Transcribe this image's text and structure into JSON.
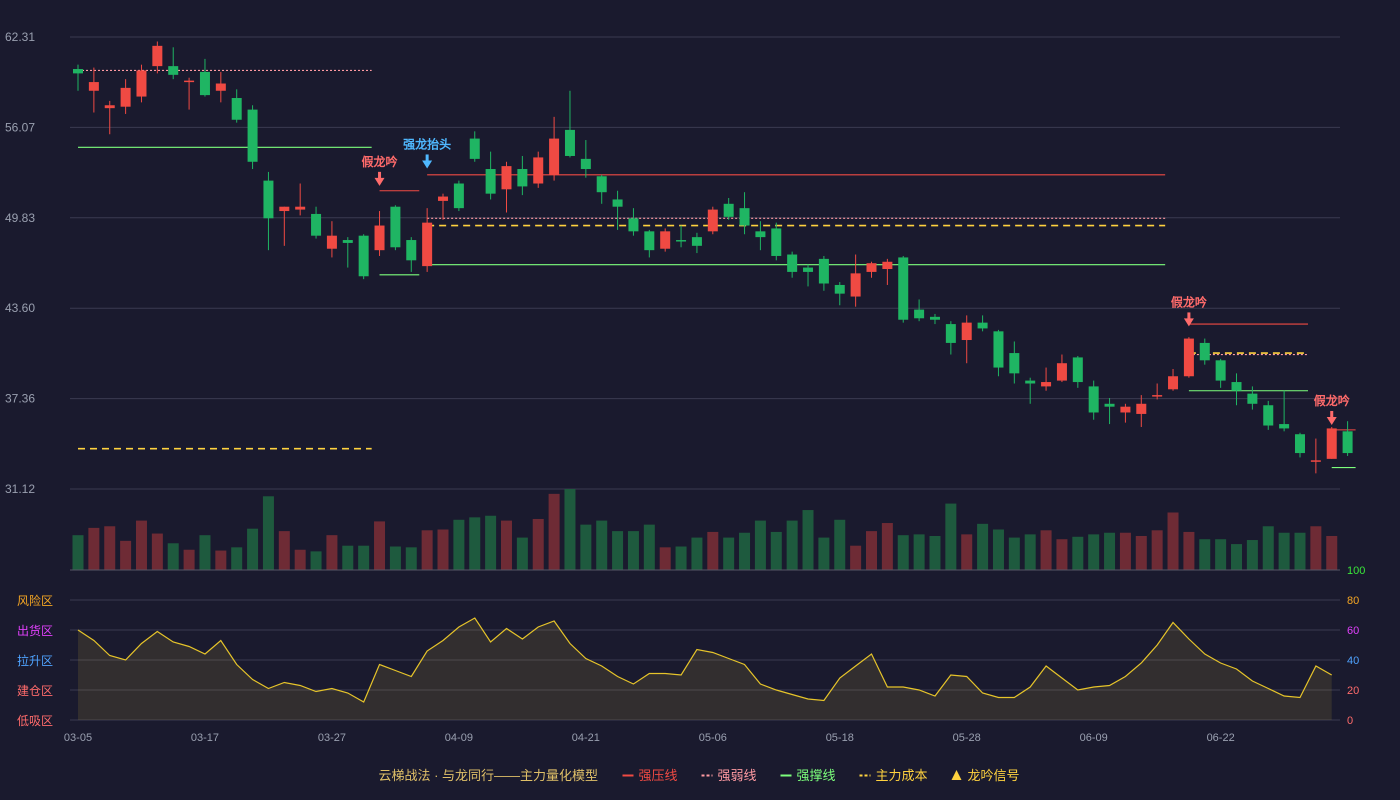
{
  "chart_data": {
    "type": "candlestick",
    "x_tick_labels": [
      "03-05",
      "03-17",
      "03-27",
      "04-09",
      "04-21",
      "05-06",
      "05-18",
      "05-28",
      "06-09",
      "06-22"
    ],
    "x_tick_index": [
      0,
      8,
      16,
      24,
      32,
      40,
      48,
      56,
      64,
      72
    ],
    "y_ticks": [
      "62.31",
      "56.07",
      "49.83",
      "43.60",
      "37.36",
      "31.12"
    ],
    "ylim": [
      31.12,
      62.31
    ],
    "candles": [
      [
        60.1,
        59.8,
        60.4,
        58.6
      ],
      [
        58.6,
        59.2,
        60.2,
        57.1
      ],
      [
        57.4,
        57.6,
        57.9,
        55.6
      ],
      [
        57.5,
        58.8,
        59.4,
        57.0
      ],
      [
        58.2,
        60.0,
        60.4,
        57.8
      ],
      [
        60.3,
        61.7,
        62.0,
        59.8
      ],
      [
        60.3,
        59.7,
        61.6,
        59.4
      ],
      [
        59.2,
        59.3,
        59.5,
        57.3
      ],
      [
        59.9,
        58.3,
        60.8,
        58.2
      ],
      [
        58.6,
        59.1,
        59.9,
        57.8
      ],
      [
        58.1,
        56.6,
        58.7,
        56.4
      ],
      [
        57.3,
        53.7,
        57.6,
        53.2
      ],
      [
        52.4,
        49.8,
        53.0,
        47.6
      ],
      [
        50.3,
        50.6,
        50.6,
        47.9
      ],
      [
        50.4,
        50.6,
        52.2,
        50.0
      ],
      [
        50.1,
        48.6,
        50.6,
        48.4
      ],
      [
        47.7,
        48.6,
        49.6,
        47.1
      ],
      [
        48.3,
        48.1,
        48.5,
        46.4
      ],
      [
        48.6,
        45.8,
        48.7,
        45.6
      ],
      [
        47.6,
        49.3,
        50.3,
        47.2
      ],
      [
        50.6,
        47.8,
        50.7,
        47.6
      ],
      [
        48.3,
        46.9,
        48.5,
        46.1
      ],
      [
        46.5,
        49.5,
        50.5,
        46.1
      ],
      [
        51.0,
        51.3,
        51.5,
        49.7
      ],
      [
        52.2,
        50.5,
        52.4,
        50.3
      ],
      [
        55.3,
        53.9,
        55.8,
        53.7
      ],
      [
        53.2,
        51.5,
        54.4,
        51.1
      ],
      [
        51.8,
        53.4,
        53.7,
        50.2
      ],
      [
        53.2,
        52.0,
        54.1,
        51.4
      ],
      [
        52.2,
        54.0,
        54.4,
        51.9
      ],
      [
        52.8,
        55.3,
        56.8,
        52.4
      ],
      [
        55.9,
        54.1,
        58.6,
        54.0
      ],
      [
        53.9,
        53.2,
        55.2,
        52.6
      ],
      [
        52.7,
        51.6,
        52.8,
        50.8
      ],
      [
        51.1,
        50.6,
        51.7,
        49.0
      ],
      [
        49.8,
        48.9,
        50.5,
        48.6
      ],
      [
        48.9,
        47.6,
        49.0,
        47.1
      ],
      [
        47.7,
        48.9,
        49.1,
        47.5
      ],
      [
        48.3,
        48.2,
        49.3,
        47.8
      ],
      [
        48.5,
        47.9,
        48.8,
        47.4
      ],
      [
        48.9,
        50.4,
        50.6,
        48.7
      ],
      [
        50.8,
        49.9,
        51.2,
        49.7
      ],
      [
        50.5,
        49.3,
        51.6,
        48.7
      ],
      [
        48.9,
        48.5,
        49.6,
        47.6
      ],
      [
        49.1,
        47.2,
        49.5,
        46.9
      ],
      [
        47.3,
        46.1,
        47.5,
        45.7
      ],
      [
        46.4,
        46.1,
        46.6,
        45.1
      ],
      [
        47.0,
        45.3,
        47.2,
        44.8
      ],
      [
        45.2,
        44.6,
        45.4,
        43.8
      ],
      [
        44.4,
        46.0,
        47.3,
        43.7
      ],
      [
        46.1,
        46.7,
        46.8,
        45.7
      ],
      [
        46.3,
        46.8,
        47.0,
        45.2
      ],
      [
        47.1,
        42.8,
        47.2,
        42.6
      ],
      [
        43.5,
        42.9,
        44.2,
        42.7
      ],
      [
        43.0,
        42.8,
        43.2,
        42.5
      ],
      [
        42.5,
        41.2,
        42.7,
        40.4
      ],
      [
        41.4,
        42.6,
        43.1,
        39.8
      ],
      [
        42.6,
        42.2,
        43.1,
        42.0
      ],
      [
        42.0,
        39.5,
        42.1,
        38.9
      ],
      [
        40.5,
        39.1,
        41.3,
        38.4
      ],
      [
        38.6,
        38.4,
        38.8,
        37.0
      ],
      [
        38.2,
        38.5,
        39.5,
        37.9
      ],
      [
        38.6,
        39.8,
        40.4,
        38.5
      ],
      [
        40.2,
        38.5,
        40.3,
        38.1
      ],
      [
        38.2,
        36.4,
        38.6,
        35.9
      ],
      [
        37.0,
        36.8,
        37.4,
        35.6
      ],
      [
        36.4,
        36.8,
        37.0,
        35.7
      ],
      [
        36.3,
        37.0,
        37.6,
        35.4
      ],
      [
        37.6,
        37.6,
        38.4,
        37.3
      ],
      [
        38.0,
        38.9,
        39.4,
        37.9
      ],
      [
        38.9,
        41.5,
        41.6,
        38.8
      ],
      [
        41.2,
        40.0,
        41.5,
        39.7
      ],
      [
        40.0,
        38.6,
        40.1,
        38.1
      ],
      [
        38.5,
        37.9,
        39.1,
        36.9
      ],
      [
        37.7,
        37.0,
        38.2,
        36.6
      ],
      [
        36.9,
        35.5,
        37.2,
        35.2
      ],
      [
        35.6,
        35.3,
        37.9,
        35.1
      ],
      [
        34.9,
        33.6,
        35.0,
        33.3
      ],
      [
        33.1,
        33.1,
        34.6,
        32.2
      ],
      [
        33.2,
        35.3,
        35.4,
        33.2
      ],
      [
        35.1,
        33.6,
        35.8,
        33.4
      ]
    ],
    "volume": [
      43,
      52,
      54,
      36,
      61,
      45,
      33,
      25,
      43,
      24,
      28,
      51,
      91,
      48,
      25,
      23,
      43,
      30,
      30,
      60,
      29,
      28,
      49,
      50,
      62,
      65,
      67,
      61,
      40,
      63,
      94,
      100,
      56,
      61,
      48,
      48,
      56,
      28,
      29,
      40,
      47,
      40,
      46,
      61,
      47,
      61,
      74,
      40,
      62,
      30,
      48,
      58,
      43,
      44,
      42,
      82,
      44,
      57,
      50,
      40,
      44,
      49,
      38,
      41,
      44,
      46,
      46,
      42,
      49,
      71,
      47,
      38,
      38,
      32,
      37,
      54,
      46,
      46,
      54,
      42
    ],
    "volume_colors": "red=up, green=down",
    "indicator": [
      60,
      53,
      43,
      40,
      51,
      59,
      52,
      49,
      44,
      53,
      37,
      27,
      21,
      25,
      23,
      19,
      21,
      18,
      12,
      37,
      33,
      29,
      46,
      53,
      62,
      68,
      52,
      61,
      54,
      62,
      66,
      51,
      41,
      36,
      29,
      24,
      31,
      31,
      30,
      47,
      45,
      41,
      37,
      24,
      20,
      17,
      14,
      13,
      28,
      36,
      44,
      22,
      22,
      20,
      16,
      30,
      29,
      18,
      15,
      15,
      22,
      36,
      28,
      20,
      22,
      23,
      29,
      38,
      50,
      65,
      54,
      44,
      38,
      34,
      26,
      21,
      16,
      15,
      36,
      30
    ],
    "indicator_ylim": [
      0,
      100
    ],
    "indicator_ticks": [
      "100",
      "80",
      "60",
      "40",
      "20",
      "0"
    ],
    "indicator_zones": [
      "风险区",
      "出货区",
      "拉升区",
      "建仓区",
      "低吸区"
    ],
    "annotations": [
      {
        "label": "假龙吟",
        "index": 19,
        "price": 51.9
      },
      {
        "label": "强龙抬头",
        "index": 22,
        "price": 53.1
      },
      {
        "label": "假龙吟",
        "index": 70,
        "price": 42.2
      },
      {
        "label": "假龙吟",
        "index": 79,
        "price": 35.4
      }
    ],
    "segments": [
      {
        "type": "weak",
        "i0": 0,
        "i1": 18,
        "y": 60.0
      },
      {
        "type": "support",
        "i0": 0,
        "i1": 18,
        "y": 54.7
      },
      {
        "type": "cost",
        "i0": 0,
        "i1": 18,
        "y": 33.9
      },
      {
        "type": "resist",
        "i0": 19,
        "i1": 21,
        "y": 51.7
      },
      {
        "type": "support",
        "i0": 19,
        "i1": 21,
        "y": 45.9
      },
      {
        "type": "resist",
        "i0": 22,
        "i1": 68,
        "y": 52.8
      },
      {
        "type": "weak",
        "i0": 22,
        "i1": 68,
        "y": 49.8
      },
      {
        "type": "cost",
        "i0": 22,
        "i1": 68,
        "y": 49.3
      },
      {
        "type": "support",
        "i0": 22,
        "i1": 68,
        "y": 46.6
      },
      {
        "type": "resist",
        "i0": 70,
        "i1": 77,
        "y": 42.5
      },
      {
        "type": "weak",
        "i0": 70,
        "i1": 77,
        "y": 40.4
      },
      {
        "type": "cost",
        "i0": 70,
        "i1": 77,
        "y": 40.5
      },
      {
        "type": "support",
        "i0": 70,
        "i1": 77,
        "y": 37.9
      },
      {
        "type": "resist",
        "i0": 79,
        "i1": 80,
        "y": 35.2
      },
      {
        "type": "support",
        "i0": 79,
        "i1": 80,
        "y": 32.6
      }
    ],
    "legend": [
      {
        "label": "云梯战法 · 与龙同行——主力量化模型",
        "color": "#e0c068",
        "type": "title"
      },
      {
        "label": "强压线",
        "color": "#f04a43",
        "type": "solid"
      },
      {
        "label": "强弱线",
        "color": "#ff9aa2",
        "type": "dashed"
      },
      {
        "label": "强撑线",
        "color": "#7cff7c",
        "type": "solid"
      },
      {
        "label": "主力成本",
        "color": "#ffd23f",
        "type": "dashed"
      },
      {
        "label": "龙吟信号",
        "color": "#ffd23f",
        "type": "triangle"
      }
    ],
    "legend_placement": "bottom"
  },
  "colors": {
    "up": "#f04a43",
    "down": "#1fb563",
    "indicator": "#e6c42a",
    "resist": "#f04a43",
    "weak": "#ff9aa2",
    "support": "#7cff7c",
    "cost": "#ffd23f",
    "signal_blue": "#4fb8ff",
    "signal_red": "#ff6b6b"
  }
}
